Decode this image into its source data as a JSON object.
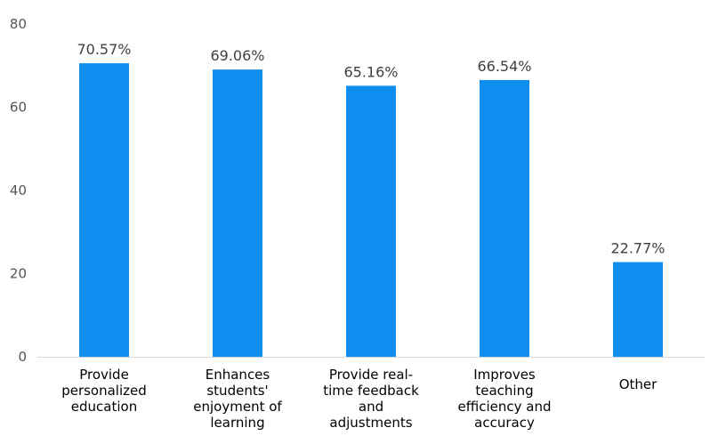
{
  "chart_data": {
    "type": "bar",
    "categories": [
      [
        "Provide",
        "personalized",
        "education"
      ],
      [
        "Enhances",
        "students'",
        "enjoyment of",
        "learning"
      ],
      [
        "Provide real-",
        "time feedback",
        "and",
        "adjustments"
      ],
      [
        "Improves",
        "teaching",
        "efficiency and",
        "accuracy"
      ],
      [
        "Other"
      ]
    ],
    "values": [
      70.57,
      69.06,
      65.16,
      66.54,
      22.77
    ],
    "data_labels": [
      "70.57%",
      "69.06%",
      "65.16%",
      "66.54%",
      "22.77%"
    ],
    "yticks": [
      "0",
      "20",
      "40",
      "60",
      "80"
    ],
    "ylim": [
      0,
      80
    ],
    "grid": false,
    "bar_color": "#0f8ef0",
    "axis_color": "#d9d9d9"
  }
}
